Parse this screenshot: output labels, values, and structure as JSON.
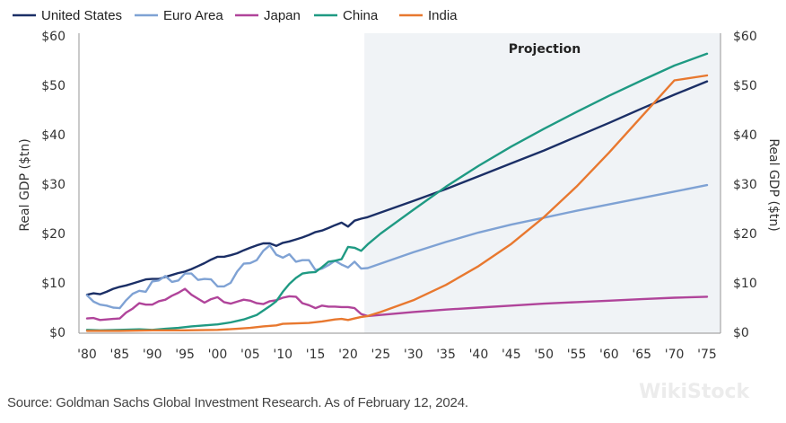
{
  "chart_data": {
    "type": "line",
    "title": "",
    "xlabel": "",
    "ylabel": "Real GDP ($tn)",
    "ylabel_right": "Real GDP ($tn)",
    "ylim": [
      0,
      60
    ],
    "xlim": [
      1980,
      2075
    ],
    "y_ticks": [
      0,
      10,
      20,
      30,
      40,
      50,
      60
    ],
    "y_tick_labels": [
      "$0",
      "$10",
      "$20",
      "$30",
      "$40",
      "$50",
      "$60"
    ],
    "x_ticks": [
      1980,
      1985,
      1990,
      1995,
      2000,
      2005,
      2010,
      2015,
      2020,
      2025,
      2030,
      2035,
      2040,
      2045,
      2050,
      2055,
      2060,
      2065,
      2070,
      2075
    ],
    "x_tick_labels": [
      "'80",
      "'85",
      "'90",
      "'95",
      "'00",
      "'05",
      "'10",
      "'15",
      "'20",
      "'25",
      "'30",
      "'35",
      "'40",
      "'45",
      "'50",
      "'55",
      "'60",
      "'65",
      "'70",
      "'75"
    ],
    "projection": {
      "label": "Projection",
      "start": 2022.5,
      "end": 2075,
      "color": "#f0f3f6"
    },
    "legend_position": "top",
    "grid": false,
    "series": [
      {
        "name": "United States",
        "color": "#1b2f66",
        "points": [
          [
            1980,
            7.6
          ],
          [
            1981,
            7.9
          ],
          [
            1982,
            7.7
          ],
          [
            1983,
            8.2
          ],
          [
            1984,
            8.8
          ],
          [
            1985,
            9.2
          ],
          [
            1986,
            9.5
          ],
          [
            1987,
            9.9
          ],
          [
            1988,
            10.3
          ],
          [
            1989,
            10.7
          ],
          [
            1990,
            10.8
          ],
          [
            1991,
            10.8
          ],
          [
            1992,
            11.2
          ],
          [
            1993,
            11.6
          ],
          [
            1994,
            12.0
          ],
          [
            1995,
            12.3
          ],
          [
            1996,
            12.8
          ],
          [
            1997,
            13.4
          ],
          [
            1998,
            14.0
          ],
          [
            1999,
            14.7
          ],
          [
            2000,
            15.3
          ],
          [
            2001,
            15.3
          ],
          [
            2002,
            15.6
          ],
          [
            2003,
            16.0
          ],
          [
            2004,
            16.6
          ],
          [
            2005,
            17.1
          ],
          [
            2006,
            17.6
          ],
          [
            2007,
            18.0
          ],
          [
            2008,
            18.0
          ],
          [
            2009,
            17.5
          ],
          [
            2010,
            18.1
          ],
          [
            2011,
            18.4
          ],
          [
            2012,
            18.8
          ],
          [
            2013,
            19.2
          ],
          [
            2014,
            19.7
          ],
          [
            2015,
            20.3
          ],
          [
            2016,
            20.6
          ],
          [
            2017,
            21.1
          ],
          [
            2018,
            21.7
          ],
          [
            2019,
            22.2
          ],
          [
            2020,
            21.4
          ],
          [
            2021,
            22.6
          ],
          [
            2022,
            23.0
          ],
          [
            2023,
            23.3
          ],
          [
            2030,
            26.6
          ],
          [
            2035,
            29.0
          ],
          [
            2040,
            31.6
          ],
          [
            2045,
            34.2
          ],
          [
            2050,
            36.8
          ],
          [
            2055,
            39.6
          ],
          [
            2060,
            42.4
          ],
          [
            2065,
            45.3
          ],
          [
            2070,
            48.1
          ],
          [
            2075,
            50.8
          ]
        ]
      },
      {
        "name": "Euro Area",
        "color": "#7fa2d4",
        "points": [
          [
            1980,
            7.5
          ],
          [
            1981,
            6.2
          ],
          [
            1982,
            5.6
          ],
          [
            1983,
            5.4
          ],
          [
            1984,
            5.0
          ],
          [
            1985,
            4.9
          ],
          [
            1986,
            6.5
          ],
          [
            1987,
            7.8
          ],
          [
            1988,
            8.4
          ],
          [
            1989,
            8.2
          ],
          [
            1990,
            10.3
          ],
          [
            1991,
            10.5
          ],
          [
            1992,
            11.4
          ],
          [
            1993,
            10.2
          ],
          [
            1994,
            10.5
          ],
          [
            1995,
            11.9
          ],
          [
            1996,
            11.9
          ],
          [
            1997,
            10.6
          ],
          [
            1998,
            10.8
          ],
          [
            1999,
            10.7
          ],
          [
            2000,
            9.3
          ],
          [
            2001,
            9.3
          ],
          [
            2002,
            10.0
          ],
          [
            2003,
            12.3
          ],
          [
            2004,
            13.9
          ],
          [
            2005,
            14.0
          ],
          [
            2006,
            14.6
          ],
          [
            2007,
            16.5
          ],
          [
            2008,
            17.6
          ],
          [
            2009,
            15.7
          ],
          [
            2010,
            15.1
          ],
          [
            2011,
            15.8
          ],
          [
            2012,
            14.3
          ],
          [
            2013,
            14.6
          ],
          [
            2014,
            14.6
          ],
          [
            2015,
            12.6
          ],
          [
            2016,
            12.9
          ],
          [
            2017,
            13.6
          ],
          [
            2018,
            14.5
          ],
          [
            2019,
            13.7
          ],
          [
            2020,
            13.1
          ],
          [
            2021,
            14.3
          ],
          [
            2022,
            12.9
          ],
          [
            2023,
            13.0
          ],
          [
            2030,
            16.2
          ],
          [
            2035,
            18.3
          ],
          [
            2040,
            20.2
          ],
          [
            2045,
            21.8
          ],
          [
            2050,
            23.2
          ],
          [
            2055,
            24.6
          ],
          [
            2060,
            25.9
          ],
          [
            2065,
            27.2
          ],
          [
            2070,
            28.5
          ],
          [
            2075,
            29.8
          ]
        ]
      },
      {
        "name": "Japan",
        "color": "#b0449a",
        "points": [
          [
            1980,
            2.8
          ],
          [
            1981,
            2.9
          ],
          [
            1982,
            2.5
          ],
          [
            1983,
            2.6
          ],
          [
            1984,
            2.7
          ],
          [
            1985,
            2.8
          ],
          [
            1986,
            4.0
          ],
          [
            1987,
            4.8
          ],
          [
            1988,
            5.9
          ],
          [
            1989,
            5.6
          ],
          [
            1990,
            5.6
          ],
          [
            1991,
            6.3
          ],
          [
            1992,
            6.6
          ],
          [
            1993,
            7.4
          ],
          [
            1994,
            8.0
          ],
          [
            1995,
            8.8
          ],
          [
            1996,
            7.6
          ],
          [
            1997,
            6.8
          ],
          [
            1998,
            6.0
          ],
          [
            1999,
            6.7
          ],
          [
            2000,
            7.1
          ],
          [
            2001,
            6.1
          ],
          [
            2002,
            5.8
          ],
          [
            2003,
            6.2
          ],
          [
            2004,
            6.6
          ],
          [
            2005,
            6.4
          ],
          [
            2006,
            5.9
          ],
          [
            2007,
            5.7
          ],
          [
            2008,
            6.3
          ],
          [
            2009,
            6.5
          ],
          [
            2010,
            7.0
          ],
          [
            2011,
            7.3
          ],
          [
            2012,
            7.2
          ],
          [
            2013,
            5.9
          ],
          [
            2014,
            5.5
          ],
          [
            2015,
            4.9
          ],
          [
            2016,
            5.4
          ],
          [
            2017,
            5.2
          ],
          [
            2018,
            5.2
          ],
          [
            2019,
            5.1
          ],
          [
            2020,
            5.1
          ],
          [
            2021,
            4.9
          ],
          [
            2022,
            3.7
          ],
          [
            2023,
            3.3
          ],
          [
            2030,
            4.1
          ],
          [
            2035,
            4.6
          ],
          [
            2040,
            5.0
          ],
          [
            2045,
            5.4
          ],
          [
            2050,
            5.8
          ],
          [
            2055,
            6.1
          ],
          [
            2060,
            6.4
          ],
          [
            2065,
            6.7
          ],
          [
            2070,
            7.0
          ],
          [
            2075,
            7.2
          ]
        ]
      },
      {
        "name": "China",
        "color": "#1f9a83",
        "points": [
          [
            1980,
            0.5
          ],
          [
            1982,
            0.4
          ],
          [
            1985,
            0.5
          ],
          [
            1988,
            0.6
          ],
          [
            1990,
            0.5
          ],
          [
            1992,
            0.7
          ],
          [
            1994,
            0.9
          ],
          [
            1996,
            1.2
          ],
          [
            1998,
            1.4
          ],
          [
            2000,
            1.6
          ],
          [
            2002,
            2.0
          ],
          [
            2004,
            2.6
          ],
          [
            2006,
            3.5
          ],
          [
            2008,
            5.3
          ],
          [
            2009,
            6.3
          ],
          [
            2010,
            8.2
          ],
          [
            2011,
            9.8
          ],
          [
            2012,
            11.0
          ],
          [
            2013,
            11.9
          ],
          [
            2014,
            12.1
          ],
          [
            2015,
            12.2
          ],
          [
            2016,
            13.2
          ],
          [
            2017,
            14.3
          ],
          [
            2018,
            14.5
          ],
          [
            2019,
            14.8
          ],
          [
            2020,
            17.3
          ],
          [
            2021,
            17.1
          ],
          [
            2022,
            16.5
          ],
          [
            2023,
            17.8
          ],
          [
            2025,
            20.0
          ],
          [
            2030,
            24.8
          ],
          [
            2035,
            29.5
          ],
          [
            2040,
            33.7
          ],
          [
            2045,
            37.6
          ],
          [
            2050,
            41.2
          ],
          [
            2055,
            44.6
          ],
          [
            2060,
            47.9
          ],
          [
            2065,
            51.0
          ],
          [
            2070,
            54.0
          ],
          [
            2075,
            56.4
          ]
        ]
      },
      {
        "name": "India",
        "color": "#e8782f",
        "points": [
          [
            1980,
            0.3
          ],
          [
            1985,
            0.3
          ],
          [
            1990,
            0.4
          ],
          [
            1995,
            0.4
          ],
          [
            2000,
            0.5
          ],
          [
            2003,
            0.7
          ],
          [
            2005,
            0.9
          ],
          [
            2007,
            1.2
          ],
          [
            2009,
            1.4
          ],
          [
            2010,
            1.7
          ],
          [
            2012,
            1.8
          ],
          [
            2014,
            1.9
          ],
          [
            2016,
            2.2
          ],
          [
            2018,
            2.6
          ],
          [
            2019,
            2.7
          ],
          [
            2020,
            2.5
          ],
          [
            2021,
            2.8
          ],
          [
            2022,
            3.1
          ],
          [
            2023,
            3.3
          ],
          [
            2025,
            4.1
          ],
          [
            2030,
            6.5
          ],
          [
            2035,
            9.6
          ],
          [
            2040,
            13.4
          ],
          [
            2045,
            17.9
          ],
          [
            2050,
            23.3
          ],
          [
            2055,
            29.5
          ],
          [
            2060,
            36.4
          ],
          [
            2065,
            43.7
          ],
          [
            2070,
            51.0
          ],
          [
            2075,
            52.0
          ]
        ]
      }
    ]
  },
  "footer": {
    "source": "Source: Goldman Sachs Global Investment Research. As of February 12, 2024.",
    "watermark": "WikiStock"
  }
}
